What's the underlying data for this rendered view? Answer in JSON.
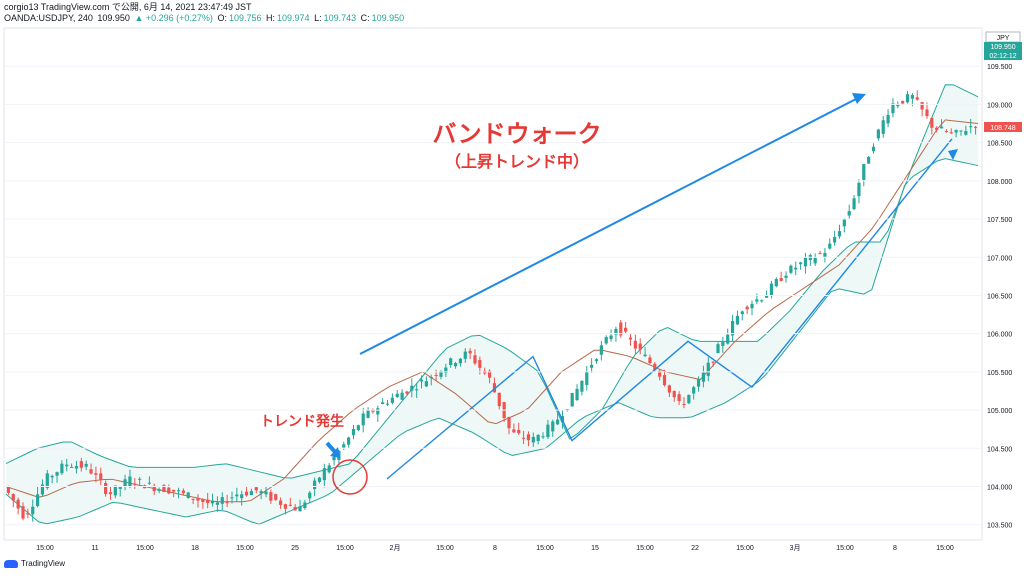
{
  "header": {
    "line1": "corgio13 TradingView.com で公開, 6月 14, 2021 23:47:49 JST",
    "symbol": "OANDA:USDJPY, 240",
    "last": "109.950",
    "change": "▲ +0.296 (+0.27%)",
    "open_label": "O:",
    "open": "109.756",
    "high_label": "H:",
    "high": "109.974",
    "low_label": "L:",
    "low": "109.743",
    "close_label": "C:",
    "close": "109.950"
  },
  "price_scale": {
    "currency": "JPY",
    "last_price_tag": "109.950",
    "countdown": "02:12:12",
    "current_price_tag": "108.748"
  },
  "annotations": {
    "title": "バンドウォーク",
    "subtitle": "（上昇トレンド中）",
    "trend_start": "トレンド発生"
  },
  "footer": {
    "brand": "TradingView"
  },
  "colors": {
    "up": "#26a69a",
    "down": "#ef5350",
    "band": "#26a69a",
    "annotation_red": "#e53935",
    "annotation_blue": "#1e88e5"
  },
  "chart_data": {
    "type": "candlestick",
    "ylim": [
      103.3,
      110.0
    ],
    "y_ticks": [
      "109.500",
      "109.000",
      "108.500",
      "108.000",
      "107.500",
      "107.000",
      "106.500",
      "106.000",
      "105.500",
      "105.000",
      "104.500",
      "104.000",
      "103.500"
    ],
    "x_ticks": [
      "15:00",
      "11",
      "15:00",
      "18",
      "15:00",
      "25",
      "15:00",
      "2月",
      "15:00",
      "8",
      "15:00",
      "15",
      "15:00",
      "22",
      "15:00",
      "3月",
      "15:00",
      "8",
      "15:00"
    ],
    "price_path": [
      104.0,
      103.6,
      104.1,
      104.3,
      104.25,
      103.9,
      104.1,
      104.0,
      103.95,
      103.85,
      103.75,
      103.9,
      103.95,
      103.8,
      103.7,
      104.15,
      104.5,
      104.9,
      105.1,
      105.25,
      105.4,
      105.6,
      105.75,
      105.4,
      104.7,
      104.6,
      104.8,
      105.2,
      105.7,
      106.1,
      105.8,
      105.5,
      105.05,
      105.4,
      105.9,
      106.35,
      106.5,
      106.8,
      106.95,
      107.1,
      107.6,
      108.4,
      109.0,
      109.1,
      108.7,
      108.6,
      108.75
    ],
    "band_upper_path": [
      104.3,
      104.5,
      104.6,
      104.4,
      104.25,
      104.25,
      104.25,
      104.3,
      104.2,
      104.1,
      104.2,
      104.3,
      104.8,
      105.3,
      105.8,
      106.0,
      105.8,
      105.5,
      104.6,
      105.0,
      105.7,
      106.1,
      105.9,
      105.9,
      105.9,
      106.3,
      106.8,
      107.2,
      107.2,
      108.3,
      109.3,
      109.1
    ],
    "band_lower_path": [
      103.9,
      103.5,
      103.6,
      103.8,
      103.7,
      103.6,
      103.7,
      103.5,
      103.7,
      103.9,
      104.3,
      104.7,
      104.9,
      104.7,
      104.4,
      104.5,
      104.9,
      105.1,
      104.9,
      104.9,
      105.1,
      105.4,
      106.0,
      106.6,
      106.5,
      108.0,
      108.3,
      108.2
    ],
    "middle_path": [
      104.0,
      103.85,
      104.05,
      104.1,
      104.0,
      103.9,
      103.8,
      103.8,
      104.1,
      104.6,
      105.0,
      105.3,
      105.5,
      105.2,
      104.8,
      105.0,
      105.5,
      105.8,
      105.7,
      105.5,
      105.4,
      105.9,
      106.3,
      106.6,
      106.9,
      107.4,
      108.1,
      108.8,
      108.75
    ],
    "annotation_trend_path": [
      104.1,
      105.7,
      104.6,
      105.9,
      105.3,
      108.55
    ]
  }
}
